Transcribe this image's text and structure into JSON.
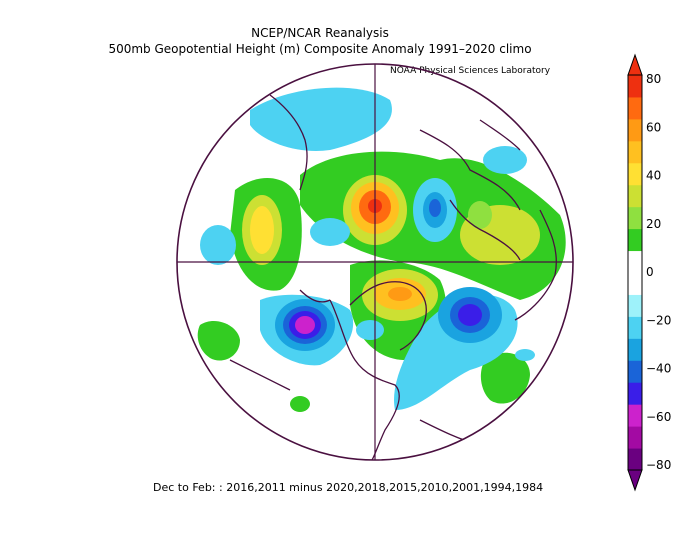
{
  "title": "NCEP/NCAR Reanalysis",
  "subtitle": "500mb Geopotential Height (m) Composite Anomaly 1991–2020 climo",
  "credit": "NOAA Physical Sciences Laboratory",
  "footer": "Dec to Feb: : 2016,2011 minus 2020,2018,2015,2010,2001,1994,1984",
  "colorbar": {
    "ticks": [
      "80",
      "60",
      "40",
      "20",
      "0",
      "−20",
      "−40",
      "−60",
      "−80"
    ],
    "colors": [
      "#6a0080",
      "#a30aa3",
      "#cc22cc",
      "#3a1ee8",
      "#1a64d8",
      "#1aa3e0",
      "#4dd2f2",
      "#9ef2fa",
      "#ffffff",
      "#ffffff",
      "#33cc22",
      "#8fe040",
      "#cce033",
      "#ffe033",
      "#ffc020",
      "#ff9a14",
      "#ff6a10",
      "#ee3010"
    ]
  }
}
